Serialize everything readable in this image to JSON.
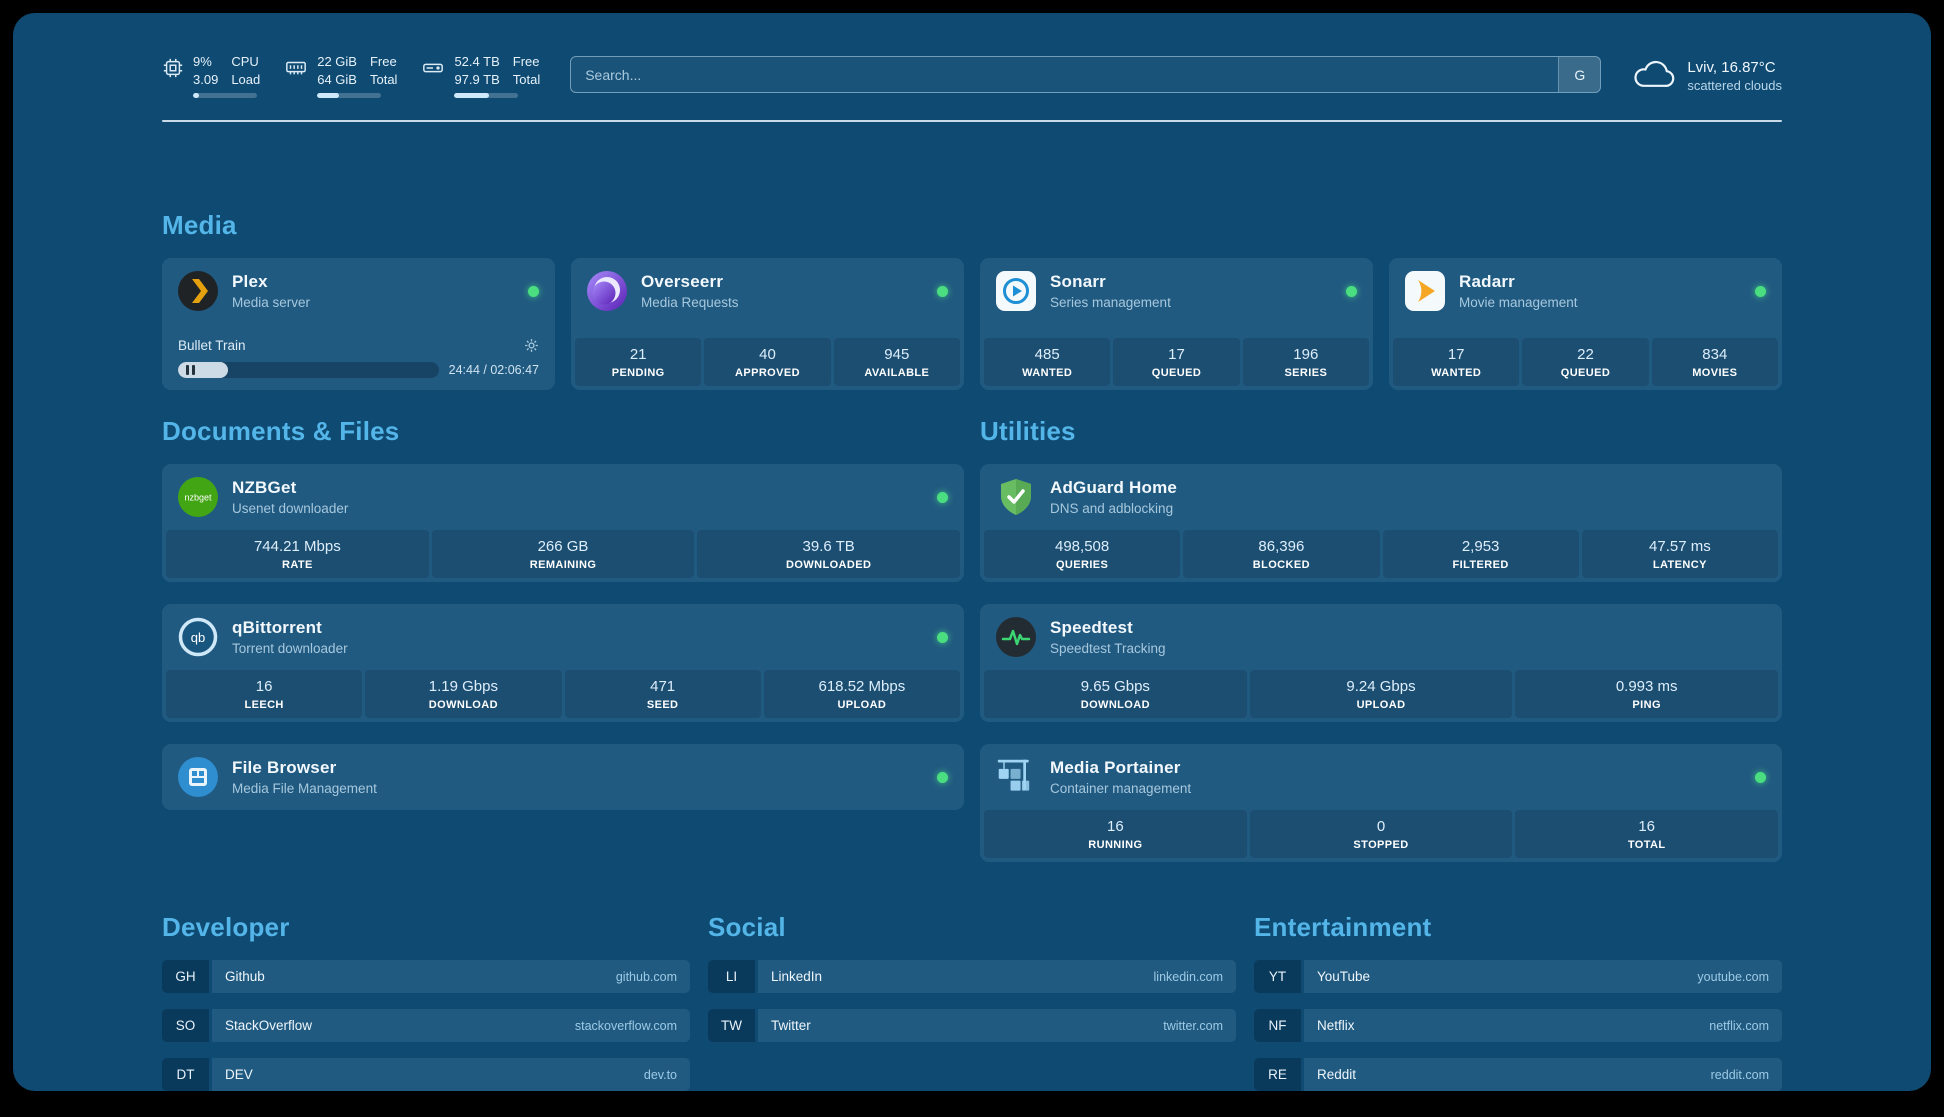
{
  "topbar": {
    "cpu": {
      "val1": "9%",
      "val2": "3.09",
      "lab1": "CPU",
      "lab2": "Load",
      "progress": 9
    },
    "ram": {
      "val1": "22 GiB",
      "val2": "64 GiB",
      "lab1": "Free",
      "lab2": "Total",
      "progress": 34
    },
    "disk": {
      "val1": "52.4 TB",
      "val2": "97.9 TB",
      "lab1": "Free",
      "lab2": "Total",
      "progress": 54
    },
    "search": {
      "placeholder": "Search...",
      "button": "G"
    },
    "weather": {
      "location": "Lviv, 16.87°C",
      "condition": "scattered clouds"
    }
  },
  "media": {
    "title": "Media",
    "plex": {
      "name": "Plex",
      "desc": "Media server",
      "now_playing": "Bullet Train",
      "time": "24:44 / 02:06:47",
      "progress": 19
    },
    "overseerr": {
      "name": "Overseerr",
      "desc": "Media Requests",
      "stats": [
        {
          "value": "21",
          "label": "PENDING"
        },
        {
          "value": "40",
          "label": "APPROVED"
        },
        {
          "value": "945",
          "label": "AVAILABLE"
        }
      ]
    },
    "sonarr": {
      "name": "Sonarr",
      "desc": "Series management",
      "stats": [
        {
          "value": "485",
          "label": "WANTED"
        },
        {
          "value": "17",
          "label": "QUEUED"
        },
        {
          "value": "196",
          "label": "SERIES"
        }
      ]
    },
    "radarr": {
      "name": "Radarr",
      "desc": "Movie management",
      "stats": [
        {
          "value": "17",
          "label": "WANTED"
        },
        {
          "value": "22",
          "label": "QUEUED"
        },
        {
          "value": "834",
          "label": "MOVIES"
        }
      ]
    }
  },
  "documents": {
    "title": "Documents & Files",
    "nzbget": {
      "name": "NZBGet",
      "desc": "Usenet downloader",
      "icon_text": "nzbget",
      "stats": [
        {
          "value": "744.21 Mbps",
          "label": "RATE"
        },
        {
          "value": "266 GB",
          "label": "REMAINING"
        },
        {
          "value": "39.6 TB",
          "label": "DOWNLOADED"
        }
      ]
    },
    "qbittorrent": {
      "name": "qBittorrent",
      "desc": "Torrent downloader",
      "icon_text": "qb",
      "stats": [
        {
          "value": "16",
          "label": "LEECH"
        },
        {
          "value": "1.19 Gbps",
          "label": "DOWNLOAD"
        },
        {
          "value": "471",
          "label": "SEED"
        },
        {
          "value": "618.52 Mbps",
          "label": "UPLOAD"
        }
      ]
    },
    "filebrowser": {
      "name": "File Browser",
      "desc": "Media File Management"
    }
  },
  "utilities": {
    "title": "Utilities",
    "adguard": {
      "name": "AdGuard Home",
      "desc": "DNS and adblocking",
      "stats": [
        {
          "value": "498,508",
          "label": "QUERIES"
        },
        {
          "value": "86,396",
          "label": "BLOCKED"
        },
        {
          "value": "2,953",
          "label": "FILTERED"
        },
        {
          "value": "47.57 ms",
          "label": "LATENCY"
        }
      ]
    },
    "speedtest": {
      "name": "Speedtest",
      "desc": "Speedtest Tracking",
      "stats": [
        {
          "value": "9.65 Gbps",
          "label": "DOWNLOAD"
        },
        {
          "value": "9.24 Gbps",
          "label": "UPLOAD"
        },
        {
          "value": "0.993 ms",
          "label": "PING"
        }
      ]
    },
    "portainer": {
      "name": "Media Portainer",
      "desc": "Container management",
      "stats": [
        {
          "value": "16",
          "label": "RUNNING"
        },
        {
          "value": "0",
          "label": "STOPPED"
        },
        {
          "value": "16",
          "label": "TOTAL"
        }
      ]
    }
  },
  "bookmarks": {
    "developer": {
      "title": "Developer",
      "items": [
        {
          "abbr": "GH",
          "name": "Github",
          "domain": "github.com"
        },
        {
          "abbr": "SO",
          "name": "StackOverflow",
          "domain": "stackoverflow.com"
        },
        {
          "abbr": "DT",
          "name": "DEV",
          "domain": "dev.to"
        }
      ]
    },
    "social": {
      "title": "Social",
      "items": [
        {
          "abbr": "LI",
          "name": "LinkedIn",
          "domain": "linkedin.com"
        },
        {
          "abbr": "TW",
          "name": "Twitter",
          "domain": "twitter.com"
        }
      ]
    },
    "entertainment": {
      "title": "Entertainment",
      "items": [
        {
          "abbr": "YT",
          "name": "YouTube",
          "domain": "youtube.com"
        },
        {
          "abbr": "NF",
          "name": "Netflix",
          "domain": "netflix.com"
        },
        {
          "abbr": "RE",
          "name": "Reddit",
          "domain": "reddit.com"
        }
      ]
    }
  }
}
